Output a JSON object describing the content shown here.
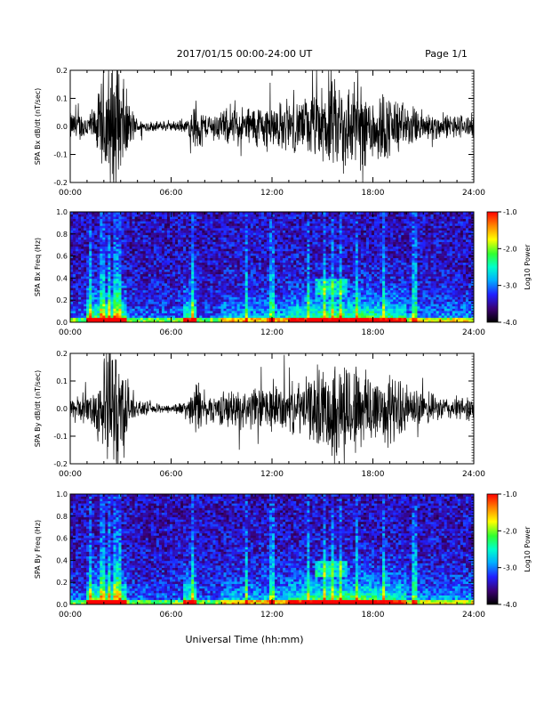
{
  "header": {
    "title": "2017/01/15  00:00-24:00 UT",
    "page": "Page 1/1"
  },
  "footer": {
    "xlabel": "Universal Time (hh:mm)"
  },
  "chart_data": [
    {
      "id": "bx",
      "type": "line",
      "ylabel": "SPA Bx dB/dt (nT/sec)",
      "xlim": [
        0,
        24
      ],
      "ylim": [
        -0.2,
        0.2
      ],
      "x_ticks": [
        "00:00",
        "06:00",
        "12:00",
        "18:00",
        "24:00"
      ],
      "y_ticks": [
        "-0.2",
        "-0.1",
        "0.0",
        "0.1",
        "0.2"
      ],
      "activity_envelope": {
        "hours": [
          0,
          1,
          1.5,
          2,
          2.5,
          3,
          3.5,
          4,
          5,
          6,
          7,
          7.5,
          8,
          9,
          10,
          11,
          12,
          13,
          14,
          15,
          16,
          17,
          18,
          19,
          20,
          21,
          22,
          23,
          24
        ],
        "amplitude": [
          0.06,
          0.06,
          0.08,
          0.25,
          0.3,
          0.25,
          0.1,
          0.03,
          0.02,
          0.02,
          0.03,
          0.12,
          0.05,
          0.07,
          0.08,
          0.09,
          0.1,
          0.1,
          0.12,
          0.16,
          0.2,
          0.18,
          0.16,
          0.14,
          0.09,
          0.07,
          0.05,
          0.05,
          0.05
        ]
      }
    },
    {
      "id": "bx-spec",
      "type": "heatmap",
      "ylabel": "SPA Bx Freq (Hz)",
      "xlim": [
        0,
        24
      ],
      "ylim": [
        0,
        1.0
      ],
      "x_ticks": [
        "00:00",
        "06:00",
        "12:00",
        "18:00",
        "24:00"
      ],
      "y_ticks": [
        "0.0",
        "0.2",
        "0.4",
        "0.6",
        "0.8",
        "1.0"
      ],
      "colorbar": {
        "label": "Log10 Power",
        "range": [
          -4.0,
          -1.0
        ],
        "ticks": [
          "-1.0",
          "-2.0",
          "-3.0",
          "-4.0"
        ]
      }
    },
    {
      "id": "by",
      "type": "line",
      "ylabel": "SPA By dB/dt (nT/sec)",
      "xlim": [
        0,
        24
      ],
      "ylim": [
        -0.2,
        0.2
      ],
      "x_ticks": [
        "00:00",
        "06:00",
        "12:00",
        "18:00",
        "24:00"
      ],
      "y_ticks": [
        "-0.2",
        "-0.1",
        "0.0",
        "0.1",
        "0.2"
      ],
      "activity_envelope": {
        "hours": [
          0,
          1,
          1.5,
          2,
          2.5,
          3,
          3.5,
          4,
          5,
          6,
          7,
          7.5,
          8,
          9,
          10,
          11,
          12,
          13,
          14,
          15,
          16,
          17,
          18,
          19,
          20,
          21,
          22,
          23,
          24
        ],
        "amplitude": [
          0.05,
          0.06,
          0.09,
          0.25,
          0.3,
          0.25,
          0.1,
          0.03,
          0.02,
          0.02,
          0.03,
          0.14,
          0.05,
          0.07,
          0.08,
          0.09,
          0.1,
          0.1,
          0.12,
          0.17,
          0.22,
          0.2,
          0.17,
          0.15,
          0.1,
          0.07,
          0.05,
          0.05,
          0.05
        ]
      }
    },
    {
      "id": "by-spec",
      "type": "heatmap",
      "ylabel": "SPA By Freq (Hz)",
      "xlim": [
        0,
        24
      ],
      "ylim": [
        0,
        1.0
      ],
      "x_ticks": [
        "00:00",
        "06:00",
        "12:00",
        "18:00",
        "24:00"
      ],
      "y_ticks": [
        "0.0",
        "0.2",
        "0.4",
        "0.6",
        "0.8",
        "1.0"
      ],
      "colorbar": {
        "label": "Log10 Power",
        "range": [
          -4.0,
          -1.0
        ],
        "ticks": [
          "-1.0",
          "-2.0",
          "-3.0",
          "-4.0"
        ]
      }
    }
  ]
}
